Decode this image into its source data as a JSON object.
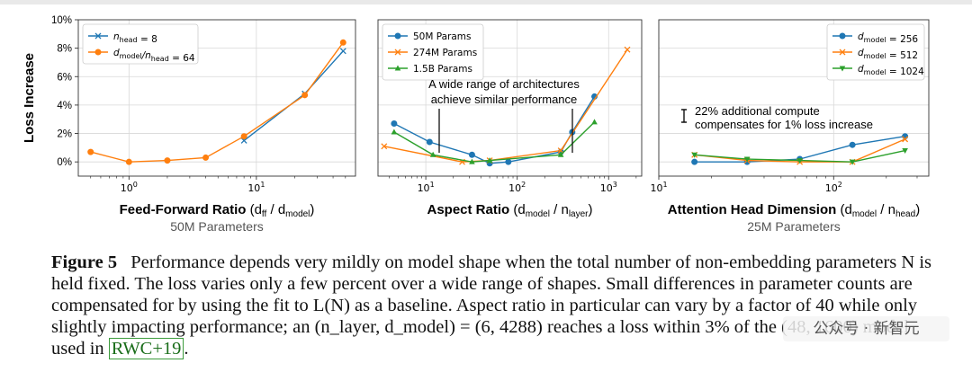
{
  "figure": {
    "panels": [
      {
        "id": "ffn",
        "ylabel": "Loss Increase",
        "xlabel": "Feed-Forward Ratio",
        "xlabel_suffix": "(d",
        "xlabel_sub1": "ff",
        "xlabel_mid": " / d",
        "xlabel_sub2": "model",
        "xlabel_end": ")",
        "subtitle": "50M Parameters",
        "legend": [
          "n_head = 8",
          "d_model/n_head = 64"
        ]
      },
      {
        "id": "aspect",
        "xlabel": "Aspect Ratio",
        "xlabel_suffix": "(d",
        "xlabel_sub1": "model",
        "xlabel_mid": " / n",
        "xlabel_sub2": "layer",
        "xlabel_end": ")",
        "legend": [
          "50M Params",
          "274M Params",
          "1.5B Params"
        ],
        "annotation": [
          "A wide range of architectures",
          "achieve similar performance"
        ]
      },
      {
        "id": "heads",
        "xlabel": "Attention Head Dimension",
        "xlabel_suffix": "(d",
        "xlabel_sub1": "model",
        "xlabel_mid": " / n",
        "xlabel_sub2": "head",
        "xlabel_end": ")",
        "subtitle": "25M Parameters",
        "legend": [
          "d_model = 256",
          "d_model = 512",
          "d_model = 1024"
        ],
        "annotation": [
          "22% additional compute",
          "compensates for 1% loss increase"
        ]
      }
    ]
  },
  "chart_data": [
    {
      "type": "line",
      "xscale": "log",
      "xlim": [
        0.4,
        60
      ],
      "ylim": [
        -0.01,
        0.1
      ],
      "ytick_labels": [
        "0%",
        "2%",
        "4%",
        "6%",
        "8%",
        "10%"
      ],
      "xtick_labels": [
        "10^0",
        "10^1"
      ],
      "xlabel": "Feed-Forward Ratio (d_ff / d_model)",
      "ylabel": "Loss Increase",
      "subtitle": "50M Parameters",
      "grid": true,
      "legend_position": "top-left",
      "series": [
        {
          "name": "n_head = 8",
          "color": "#1f77b4",
          "marker": "x",
          "x": [
            8,
            24,
            48
          ],
          "y": [
            0.015,
            0.048,
            0.078
          ]
        },
        {
          "name": "d_model/n_head = 64",
          "color": "#ff7f0e",
          "marker": "o",
          "x": [
            0.5,
            1,
            2,
            4,
            8,
            24,
            48
          ],
          "y": [
            0.007,
            0.0,
            0.001,
            0.003,
            0.018,
            0.047,
            0.084
          ]
        }
      ]
    },
    {
      "type": "line",
      "xscale": "log",
      "xlim": [
        3,
        2300
      ],
      "ylim": [
        -0.01,
        0.1
      ],
      "xtick_labels": [
        "10^1",
        "10^2",
        "10^3"
      ],
      "xlabel": "Aspect Ratio (d_model / n_layer)",
      "grid": true,
      "legend_position": "top-left",
      "series": [
        {
          "name": "50M Params",
          "color": "#1f77b4",
          "marker": "o",
          "x": [
            4.5,
            11,
            32,
            50,
            80,
            300,
            400,
            700
          ],
          "y": [
            0.027,
            0.014,
            0.005,
            -0.001,
            0.0,
            0.007,
            0.021,
            0.046
          ]
        },
        {
          "name": "274M Params",
          "color": "#ff7f0e",
          "marker": "x",
          "x": [
            3.5,
            25,
            50,
            300,
            1600
          ],
          "y": [
            0.011,
            0.0,
            0.001,
            0.008,
            0.079
          ]
        },
        {
          "name": "1.5B Params",
          "color": "#2ca02c",
          "marker": "^",
          "x": [
            4.5,
            12,
            32,
            50,
            300,
            700
          ],
          "y": [
            0.021,
            0.005,
            0.0,
            0.001,
            0.005,
            0.028
          ]
        }
      ],
      "annotation": "A wide range of architectures achieve similar performance"
    },
    {
      "type": "line",
      "xscale": "log",
      "xlim": [
        10,
        350
      ],
      "ylim": [
        -0.01,
        0.1
      ],
      "xtick_labels": [
        "10^1",
        "10^2"
      ],
      "xlabel": "Attention Head Dimension (d_model / n_head)",
      "subtitle": "25M Parameters",
      "grid": true,
      "legend_position": "top-right",
      "series": [
        {
          "name": "d_model = 256",
          "color": "#1f77b4",
          "marker": "o",
          "x": [
            16,
            32,
            64,
            128,
            256
          ],
          "y": [
            0.0,
            0.0,
            0.002,
            0.012,
            0.018
          ]
        },
        {
          "name": "d_model = 512",
          "color": "#ff7f0e",
          "marker": "x",
          "x": [
            16,
            32,
            64,
            128,
            256
          ],
          "y": [
            0.005,
            0.001,
            0.0,
            0.0,
            0.016
          ]
        },
        {
          "name": "d_model = 1024",
          "color": "#2ca02c",
          "marker": "v",
          "x": [
            16,
            32,
            64,
            128,
            256
          ],
          "y": [
            0.005,
            0.002,
            0.001,
            0.0,
            0.008
          ]
        }
      ],
      "annotation": "22% additional compute compensates for 1% loss increase"
    }
  ],
  "caption": {
    "label": "Figure 5",
    "text": "Performance depends very mildly on model shape when the total number of non-embedding parameters N is held fixed. The loss varies only a few percent over a wide range of shapes. Small differences in parameter counts are compensated for by using the fit to L(N) as a baseline. Aspect ratio in particular can vary by a factor of 40 while only slightly impacting performance; an (n_layer, d_model) = (6, 4288) reaches a loss within 3% of the (48, 1600) model used in",
    "citation": "RWC+19",
    "end": "."
  },
  "watermark": "公众号 · 新智元"
}
